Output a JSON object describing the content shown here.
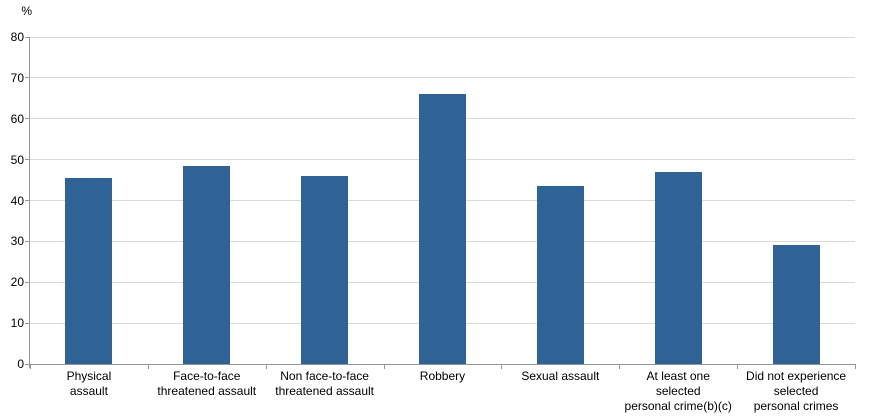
{
  "chart_data": {
    "type": "bar",
    "title": "",
    "xlabel": "",
    "ylabel": "%",
    "categories": [
      "Physical\nassault",
      "Face-to-face\nthreatened assault",
      "Non face-to-face\nthreatened assault",
      "Robbery",
      "Sexual assault",
      "At least one\nselected\npersonal crime(b)(c)",
      "Did not experience\nselected\npersonal crimes"
    ],
    "values": [
      45.5,
      48.5,
      46,
      66,
      43.5,
      47,
      29
    ],
    "ylim": [
      0,
      80
    ],
    "yticks": [
      0,
      10,
      20,
      30,
      40,
      50,
      60,
      70,
      80
    ],
    "grid": true,
    "legend": "none",
    "bar_color": "#2F6396",
    "gridline_color": "#D9D9D9",
    "axis_color": "#969696",
    "text_color": "#000000"
  }
}
